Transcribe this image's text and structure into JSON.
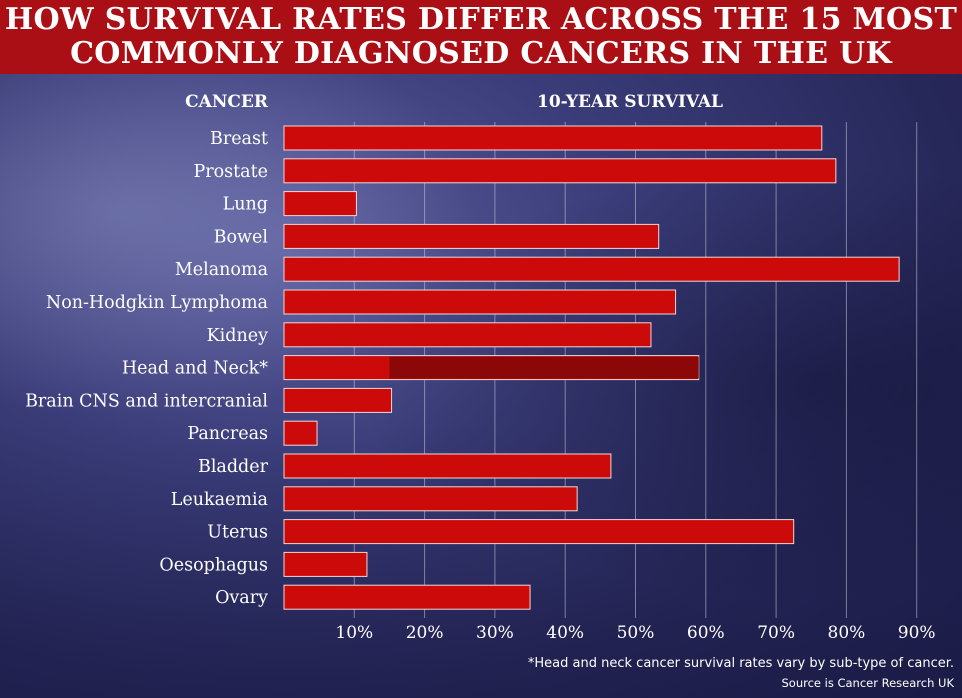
{
  "title_lines": [
    "HOW SURVIVAL RATES DIFFER ACROSS THE 15 MOST",
    "COMMONLY DIAGNOSED CANCERS IN THE UK"
  ],
  "footnote": "*Head and neck cancer survival rates vary by sub-type of cancer.",
  "source": "Source is Cancer Research UK",
  "colors": {
    "bar": "#cc0a0a",
    "bar_range": "#8c0808",
    "title_band": "#ab0f16",
    "gridline": "#c8c8dc"
  },
  "chart_data": {
    "type": "bar",
    "orientation": "horizontal",
    "category_header": "CANCER",
    "value_header": "10-YEAR SURVIVAL",
    "categories": [
      "Breast",
      "Prostate",
      "Lung",
      "Bowel",
      "Melanoma",
      "Non-Hodgkin Lymphoma",
      "Kidney",
      "Head and Neck*",
      "Brain CNS and intercranial",
      "Pancreas",
      "Bladder",
      "Leukaemia",
      "Uterus",
      "Oesophagus",
      "Ovary"
    ],
    "values": [
      76.5,
      78.5,
      10.3,
      53.3,
      87.5,
      55.7,
      52.2,
      59,
      15.3,
      4.7,
      46.5,
      41.7,
      72.5,
      11.8,
      35
    ],
    "range_bars": [
      {
        "category": "Head and Neck*",
        "from": 15,
        "to": 59
      }
    ],
    "xlim": [
      0,
      93
    ],
    "xticks": [
      10,
      20,
      30,
      40,
      50,
      60,
      70,
      80,
      90
    ],
    "xtick_labels": [
      "10%",
      "20%",
      "30%",
      "40%",
      "50%",
      "60%",
      "70%",
      "80%",
      "90%"
    ],
    "grid": true,
    "legend": "none"
  }
}
